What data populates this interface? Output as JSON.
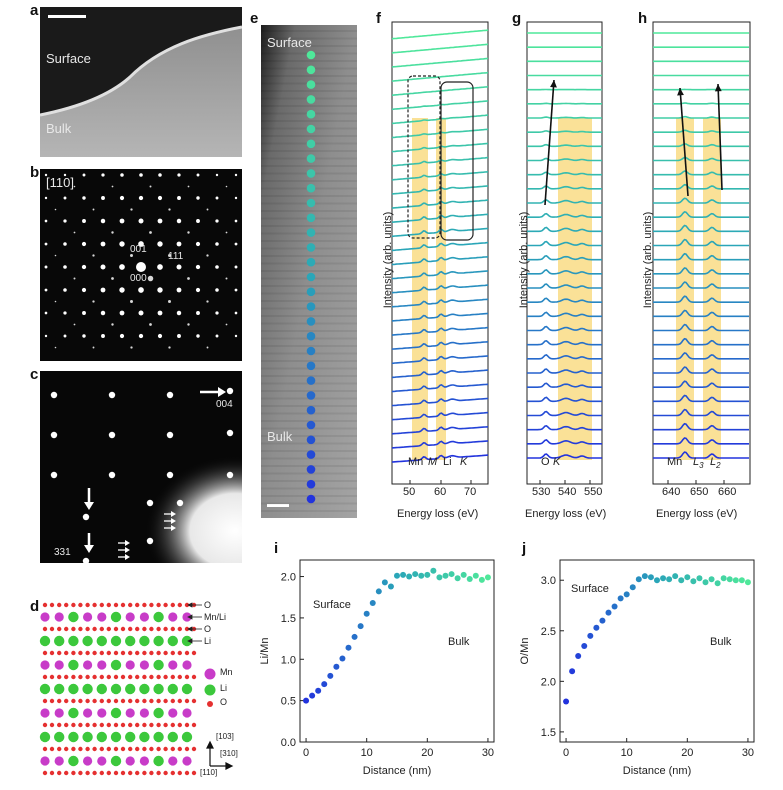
{
  "panels": {
    "a": {
      "label": "a",
      "surface": "Surface",
      "bulk": "Bulk"
    },
    "b": {
      "label": "b",
      "zone": "[110]",
      "spots": [
        "001",
        "111",
        "000"
      ],
      "bar_spot": "1"
    },
    "c": {
      "label": "c",
      "spots": [
        "004",
        "331"
      ]
    },
    "d": {
      "label": "d",
      "row_labels": [
        "O",
        "Mn/Li",
        "O",
        "Li"
      ],
      "legend": [
        "Mn",
        "Li",
        "O"
      ],
      "axes": [
        "[103]",
        "[310]",
        "[110]"
      ],
      "colors": {
        "Mn": "#c83cc8",
        "Li": "#3cc83c",
        "O": "#e53030"
      }
    },
    "e": {
      "label": "e",
      "surface": "Surface",
      "bulk": "Bulk"
    },
    "f": {
      "label": "f",
      "xlabel": "Energy loss (eV)",
      "ylabel": "Intensity (arb. units)",
      "ticks": [
        "50",
        "60",
        "70"
      ],
      "peaks": [
        "Mn",
        "M",
        "Li",
        "K"
      ]
    },
    "g": {
      "label": "g",
      "xlabel": "Energy loss (eV)",
      "ylabel": "Intensity (arb. units)",
      "ticks": [
        "530",
        "540",
        "550"
      ],
      "peaks": [
        "O",
        "K"
      ]
    },
    "h": {
      "label": "h",
      "xlabel": "Energy loss (eV)",
      "ylabel": "Intensity (arb. units)",
      "ticks": [
        "640",
        "650",
        "660"
      ],
      "peaks": [
        "Mn",
        "L",
        "3",
        "L",
        "2"
      ]
    },
    "i": {
      "label": "i",
      "surface": "Surface",
      "bulk": "Bulk"
    },
    "j": {
      "label": "j",
      "surface": "Surface",
      "bulk": "Bulk"
    }
  },
  "colors": {
    "top": "#4fe89a",
    "mid": "#2aa6b8",
    "bottom": "#2233dd",
    "highlight": "#f5c842"
  },
  "chart_data": [
    {
      "type": "scatter",
      "title": "i",
      "xlabel": "Distance (nm)",
      "ylabel": "Li/Mn",
      "xlim": [
        -1,
        31
      ],
      "ylim": [
        0,
        2.2
      ],
      "xticks": [
        0,
        10,
        20,
        30
      ],
      "yticks": [
        0.0,
        0.5,
        1.0,
        1.5,
        2.0
      ],
      "x": [
        0,
        1,
        2,
        3,
        4,
        5,
        6,
        7,
        8,
        9,
        10,
        11,
        12,
        13,
        14,
        15,
        16,
        17,
        18,
        19,
        20,
        21,
        22,
        23,
        24,
        25,
        26,
        27,
        28,
        29,
        30
      ],
      "y": [
        0.5,
        0.56,
        0.62,
        0.7,
        0.8,
        0.91,
        1.01,
        1.14,
        1.27,
        1.4,
        1.55,
        1.68,
        1.82,
        1.93,
        1.88,
        2.01,
        2.02,
        2.0,
        2.03,
        2.01,
        2.02,
        2.07,
        1.99,
        2.01,
        2.03,
        1.98,
        2.02,
        1.97,
        2.01,
        1.96,
        1.99
      ]
    },
    {
      "type": "scatter",
      "title": "j",
      "xlabel": "Distance (nm)",
      "ylabel": "O/Mn",
      "xlim": [
        -1,
        31
      ],
      "ylim": [
        1.4,
        3.2
      ],
      "xticks": [
        0,
        10,
        20,
        30
      ],
      "yticks": [
        1.5,
        2.0,
        2.5,
        3.0
      ],
      "x": [
        0,
        1,
        2,
        3,
        4,
        5,
        6,
        7,
        8,
        9,
        10,
        11,
        12,
        13,
        14,
        15,
        16,
        17,
        18,
        19,
        20,
        21,
        22,
        23,
        24,
        25,
        26,
        27,
        28,
        29,
        30
      ],
      "y": [
        1.8,
        2.1,
        2.25,
        2.35,
        2.45,
        2.53,
        2.6,
        2.68,
        2.74,
        2.82,
        2.86,
        2.93,
        3.01,
        3.04,
        3.03,
        3.0,
        3.02,
        3.01,
        3.04,
        3.0,
        3.03,
        2.99,
        3.02,
        2.98,
        3.01,
        2.97,
        3.02,
        3.01,
        3.0,
        3.0,
        2.98
      ]
    }
  ]
}
